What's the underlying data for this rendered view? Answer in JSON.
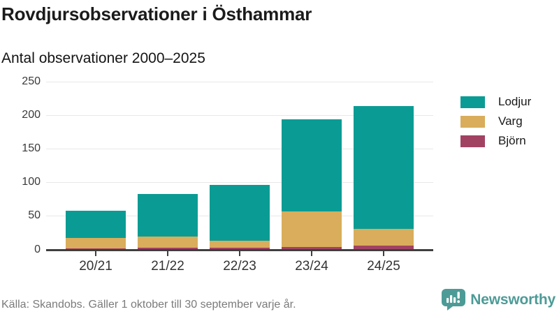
{
  "header": {
    "title": "Rovdjursobservationer i Östhammar",
    "subtitle": "Antal observationer 2000–2025"
  },
  "chart_data": {
    "type": "bar",
    "stacked": true,
    "title": "Rovdjursobservationer i Östhammar",
    "subtitle": "Antal observationer 2000–2025",
    "categories": [
      "20/21",
      "21/22",
      "22/23",
      "23/24",
      "24/25"
    ],
    "series": [
      {
        "name": "Lodjur",
        "color": "#0a9c94",
        "values": [
          41,
          64,
          83,
          137,
          183
        ]
      },
      {
        "name": "Varg",
        "color": "#d9ad5b",
        "values": [
          15,
          16,
          10,
          53,
          25
        ]
      },
      {
        "name": "Björn",
        "color": "#a24263",
        "values": [
          2,
          3,
          3,
          4,
          6
        ]
      }
    ],
    "totals": [
      58,
      83,
      96,
      194,
      214
    ],
    "xlabel": "",
    "ylabel": "",
    "ylim": [
      0,
      250
    ],
    "yticks": [
      0,
      50,
      100,
      150,
      200,
      250
    ],
    "grid": "horizontal",
    "legend_position": "right",
    "stack_order_bottom_to_top": [
      "Björn",
      "Varg",
      "Lodjur"
    ]
  },
  "legend": {
    "items": [
      {
        "label": "Lodjur",
        "color": "#0a9c94"
      },
      {
        "label": "Varg",
        "color": "#d9ad5b"
      },
      {
        "label": "Björn",
        "color": "#a24263"
      }
    ]
  },
  "footer": {
    "source": "Källa: Skandobs. Gäller 1 oktober till 30 september varje år.",
    "brand": "Newsworthy",
    "brand_color": "#4d9b97"
  },
  "icons": {
    "brand_logo": "bar-chart-speech-bubble-icon"
  },
  "colors": {
    "lodjur": "#0a9c94",
    "varg": "#d9ad5b",
    "bjorn": "#a24263",
    "gridline": "#e8e8e8",
    "axis": "#3f3f3f",
    "text": "#1b1b1b",
    "muted_text": "#7b7b7b"
  }
}
